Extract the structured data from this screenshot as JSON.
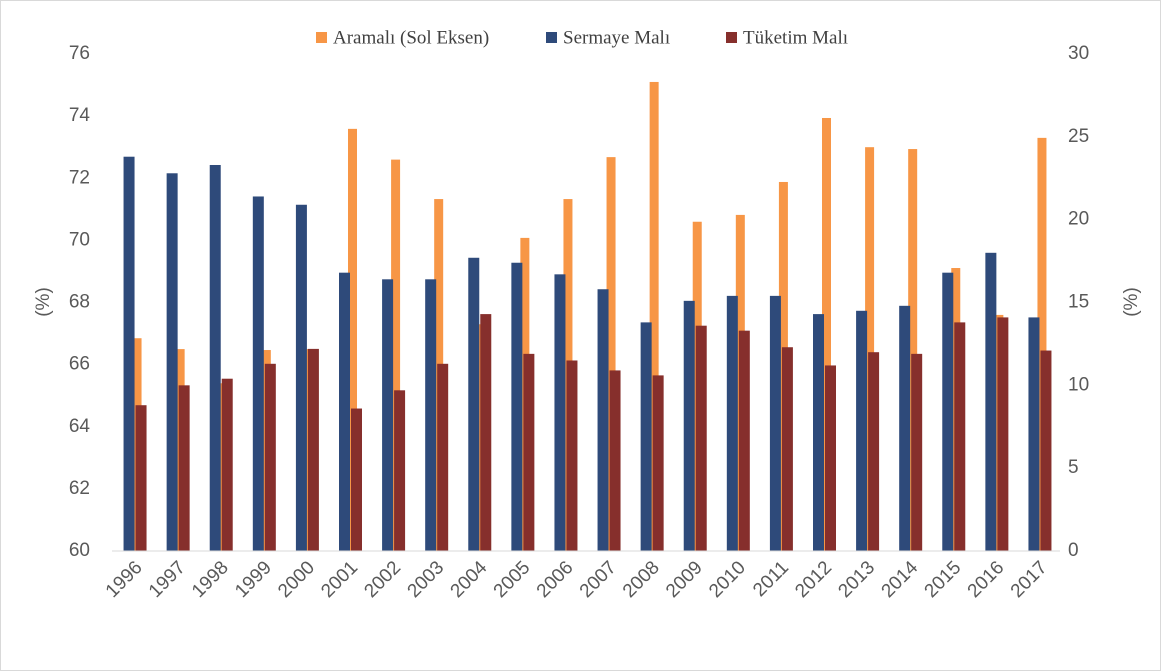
{
  "chart_data": {
    "type": "bar",
    "categories": [
      "1996",
      "1997",
      "1998",
      "1999",
      "2000",
      "2001",
      "2002",
      "2003",
      "2004",
      "2005",
      "2006",
      "2007",
      "2008",
      "2009",
      "2010",
      "2011",
      "2012",
      "2013",
      "2014",
      "2015",
      "2016",
      "2017"
    ],
    "series": [
      {
        "name": "Aramalı (Sol Eksen)",
        "color": "#f79646",
        "axis": "y",
        "values": [
          66.85,
          66.5,
          65.4,
          66.47,
          66.5,
          73.59,
          72.6,
          71.33,
          67.3,
          70.08,
          71.33,
          72.68,
          75.1,
          70.6,
          70.82,
          71.88,
          73.94,
          73.0,
          72.94,
          69.11,
          67.6,
          73.3
        ]
      },
      {
        "name": "Sermaye Malı",
        "color": "#2e4a7a",
        "axis": "y2",
        "values": [
          23.8,
          22.8,
          23.3,
          21.4,
          20.9,
          16.8,
          16.4,
          16.4,
          17.7,
          17.4,
          16.7,
          15.8,
          13.8,
          15.1,
          15.4,
          15.4,
          14.3,
          14.5,
          14.8,
          16.8,
          18.0,
          14.1
        ]
      },
      {
        "name": "Tüketim Malı",
        "color": "#862f2c",
        "axis": "y2",
        "values": [
          8.8,
          10.0,
          10.4,
          11.3,
          12.2,
          8.6,
          9.7,
          11.3,
          14.3,
          11.9,
          11.5,
          10.9,
          10.6,
          13.6,
          13.3,
          12.3,
          11.2,
          12.0,
          11.9,
          13.8,
          14.1,
          12.1
        ]
      }
    ],
    "ylim": [
      60,
      76
    ],
    "yticks": [
      60,
      62,
      64,
      66,
      68,
      70,
      72,
      74,
      76
    ],
    "y2lim": [
      0,
      30
    ],
    "y2ticks": [
      0,
      5,
      10,
      15,
      20,
      25,
      30
    ],
    "ylabel": "(%)",
    "y2label": "(%)",
    "legend": "top",
    "grid": false
  }
}
